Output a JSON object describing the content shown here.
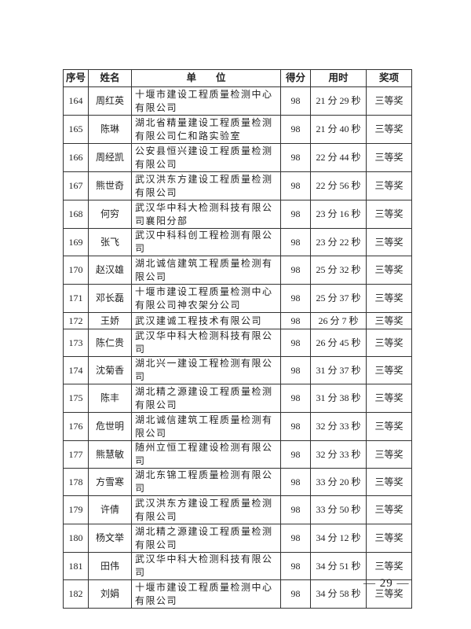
{
  "table": {
    "headers": [
      "序号",
      "姓名",
      "单　　位",
      "得分",
      "用时",
      "奖项"
    ],
    "rows": [
      {
        "no": "164",
        "name": "周红英",
        "unit": "十堰市建设工程质量检测中心有限公司",
        "score": "98",
        "time": "21 分 29 秒",
        "award": "三等奖"
      },
      {
        "no": "165",
        "name": "陈琳",
        "unit": "湖北省精量建设工程质量检测有限公司仁和路实验室",
        "score": "98",
        "time": "21 分 40 秒",
        "award": "三等奖"
      },
      {
        "no": "166",
        "name": "周经凯",
        "unit": "公安县恒兴建设工程质量检测有限公司",
        "score": "98",
        "time": "22 分 44 秒",
        "award": "三等奖"
      },
      {
        "no": "167",
        "name": "熊世奇",
        "unit": "武汉洪东方建设工程质量检测有限公司",
        "score": "98",
        "time": "22 分 56 秒",
        "award": "三等奖"
      },
      {
        "no": "168",
        "name": "何穷",
        "unit": "武汉华中科大检测科技有限公司襄阳分部",
        "score": "98",
        "time": "23 分 16 秒",
        "award": "三等奖"
      },
      {
        "no": "169",
        "name": "张飞",
        "unit": "武汉中科科创工程检测有限公司",
        "score": "98",
        "time": "23 分 22 秒",
        "award": "三等奖"
      },
      {
        "no": "170",
        "name": "赵汉雄",
        "unit": "湖北诚信建筑工程质量检测有限公司",
        "score": "98",
        "time": "25 分 32 秒",
        "award": "三等奖"
      },
      {
        "no": "171",
        "name": "邓长磊",
        "unit": "十堰市建设工程质量检测中心有限公司神农架分公司",
        "score": "98",
        "time": "25 分 37 秒",
        "award": "三等奖"
      },
      {
        "no": "172",
        "name": "王娇",
        "unit": "武汉建诚工程技术有限公司",
        "score": "98",
        "time": "26 分 7 秒",
        "award": "三等奖"
      },
      {
        "no": "173",
        "name": "陈仁贵",
        "unit": "武汉华中科大检测科技有限公司",
        "score": "98",
        "time": "26 分 45 秒",
        "award": "三等奖"
      },
      {
        "no": "174",
        "name": "沈菊香",
        "unit": "湖北兴一建设工程检测有限公司",
        "score": "98",
        "time": "31 分 37 秒",
        "award": "三等奖"
      },
      {
        "no": "175",
        "name": "陈丰",
        "unit": "湖北精之源建设工程质量检测有限公司",
        "score": "98",
        "time": "31 分 38 秒",
        "award": "三等奖"
      },
      {
        "no": "176",
        "name": "危世明",
        "unit": "湖北诚信建筑工程质量检测有限公司",
        "score": "98",
        "time": "32 分 33 秒",
        "award": "三等奖"
      },
      {
        "no": "177",
        "name": "熊慧敏",
        "unit": "随州立恒工程建设检测有限公司",
        "score": "98",
        "time": "32 分 33 秒",
        "award": "三等奖"
      },
      {
        "no": "178",
        "name": "方雪寒",
        "unit": "湖北东锦工程质量检测有限公司",
        "score": "98",
        "time": "33 分 20 秒",
        "award": "三等奖"
      },
      {
        "no": "179",
        "name": "许倩",
        "unit": "武汉洪东方建设工程质量检测有限公司",
        "score": "98",
        "time": "33 分 50 秒",
        "award": "三等奖"
      },
      {
        "no": "180",
        "name": "杨文举",
        "unit": "湖北精之源建设工程质量检测有限公司",
        "score": "98",
        "time": "34 分 12 秒",
        "award": "三等奖"
      },
      {
        "no": "181",
        "name": "田伟",
        "unit": "武汉华中科大检测科技有限公司",
        "score": "98",
        "time": "34 分 51 秒",
        "award": "三等奖"
      },
      {
        "no": "182",
        "name": "刘娟",
        "unit": "十堰市建设工程质量检测中心有限公司",
        "score": "98",
        "time": "34 分 58 秒",
        "award": "三等奖"
      }
    ]
  },
  "page_number": "— 29 —"
}
